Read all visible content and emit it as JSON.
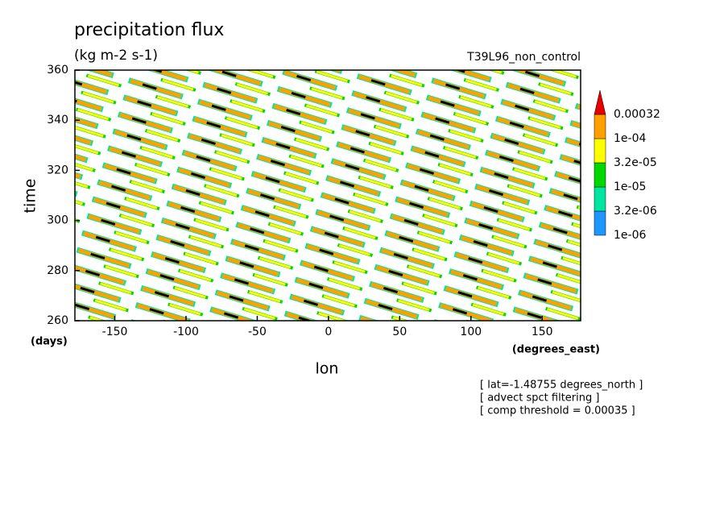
{
  "chart_data": {
    "type": "contour",
    "title": "precipitation flux",
    "subtitle": "(kg m-2 s-1)",
    "run_label": "T39L96_non_control",
    "x_label": "lon",
    "y_label": "time",
    "x_unit": "(degrees_east)",
    "y_unit": "(days)",
    "xlim": [
      -178,
      177
    ],
    "xticks": [
      -150,
      -100,
      -50,
      0,
      50,
      100,
      150
    ],
    "ylim": [
      260,
      360
    ],
    "yticks": [
      260,
      280,
      300,
      320,
      340,
      360
    ],
    "colorbar": {
      "levels": [
        {
          "value": 1e-06,
          "label": "1e-06"
        },
        {
          "value": 3.2e-06,
          "label": "3.2e-06"
        },
        {
          "value": 1e-05,
          "label": "1e-05"
        },
        {
          "value": 3.2e-05,
          "label": "3.2e-05"
        },
        {
          "value": 0.0001,
          "label": "1e-04"
        },
        0.00032
      ],
      "colors": [
        "#1e96ff",
        "#00e6a0",
        "#00d800",
        "#ffff00",
        "#ffa000",
        "#e60000"
      ]
    },
    "notes": [
      "[ lat=-1.48755 degrees_north ]",
      "[ advect spct filtering ]",
      "[ comp threshold = 0.00035 ]"
    ]
  }
}
